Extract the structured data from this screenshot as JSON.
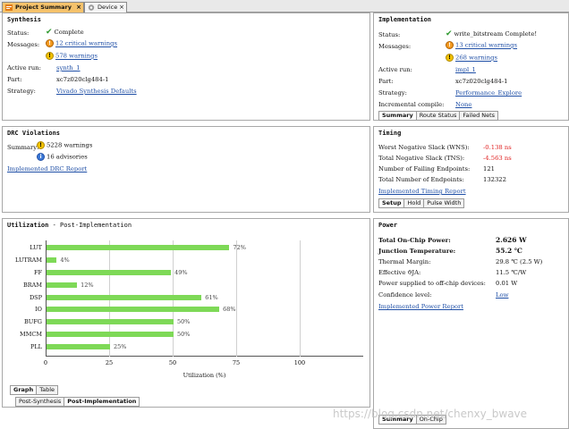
{
  "tabs": [
    {
      "label": "Project Summary",
      "active": true
    },
    {
      "label": "Device",
      "active": false
    }
  ],
  "synthesis": {
    "title": "Synthesis",
    "status_label": "Status:",
    "status_value": "Complete",
    "messages_label": "Messages:",
    "critical_warnings": "12 critical warnings",
    "warnings": "578 warnings",
    "active_run_label": "Active run:",
    "active_run_value": "synth_1",
    "part_label": "Part:",
    "part_value": "xc7z020clg484-1",
    "strategy_label": "Strategy:",
    "strategy_value": "Vivado Synthesis Defaults"
  },
  "implementation": {
    "title": "Implementation",
    "status_label": "Status:",
    "status_value": "write_bitstream Complete!",
    "messages_label": "Messages:",
    "critical_warnings": "13 critical warnings",
    "warnings": "268 warnings",
    "active_run_label": "Active run:",
    "active_run_value": "impl_1",
    "part_label": "Part:",
    "part_value": "xc7z020clg484-1",
    "strategy_label": "Strategy:",
    "strategy_value": "Performance_Explore",
    "incremental_label": "Incremental compile:",
    "incremental_value": "None",
    "subtabs": [
      "Summary",
      "Route Status",
      "Failed Nets"
    ]
  },
  "drc": {
    "title": "DRC Violations",
    "summary_label": "Summary:",
    "warnings": "5228 warnings",
    "advisories": "16 advisories",
    "report_link": "Implemented DRC Report"
  },
  "timing": {
    "title": "Timing",
    "wns_label": "Worst Negative Slack (WNS):",
    "wns_value": "-0.138 ns",
    "tns_label": "Total Negative Slack (TNS):",
    "tns_value": "-4.563 ns",
    "failing_label": "Number of Failing Endpoints:",
    "failing_value": "121",
    "total_label": "Total Number of Endpoints:",
    "total_value": "132322",
    "report_link": "Implemented Timing Report",
    "subtabs": [
      "Setup",
      "Hold",
      "Pulse Width"
    ]
  },
  "utilization": {
    "title": "Utilization",
    "subtitle": "- Post-Implementation",
    "view_tabs": [
      "Graph",
      "Table"
    ],
    "stage_tabs": [
      "Post-Synthesis",
      "Post-Implementation"
    ]
  },
  "chart_data": {
    "type": "bar",
    "orientation": "horizontal",
    "categories": [
      "LUT",
      "LUTRAM",
      "FF",
      "BRAM",
      "DSP",
      "IO",
      "BUFG",
      "MMCM",
      "PLL"
    ],
    "values": [
      72,
      4,
      49,
      12,
      61,
      68,
      50,
      50,
      25
    ],
    "value_labels": [
      "72%",
      "4%",
      "49%",
      "12%",
      "61%",
      "68%",
      "50%",
      "50%",
      "25%"
    ],
    "xlabel": "Utilization (%)",
    "xticks": [
      "0",
      "25",
      "50",
      "75",
      "100"
    ],
    "xlim": [
      0,
      125
    ],
    "grid": true,
    "bar_color": "#7ed957"
  },
  "power": {
    "title": "Power",
    "total_label": "Total On-Chip Power:",
    "total_value": "2.626 W",
    "junction_label": "Junction Temperature:",
    "junction_value": "55.2 ℃",
    "thermal_label": "Thermal Margin:",
    "thermal_value": "29.8 ℃ (2.5 W)",
    "theta_label": "Effective ϑJA:",
    "theta_value": "11.5 ℃/W",
    "offchip_label": "Power supplied to off-chip devices:",
    "offchip_value": "0.01 W",
    "confidence_label": "Confidence level:",
    "confidence_value": "Low",
    "report_link": "Implemented Power Report",
    "subtabs": [
      "Summary",
      "On-Chip"
    ]
  },
  "watermark": "https://blog.csdn.net/chenxy_bwave"
}
